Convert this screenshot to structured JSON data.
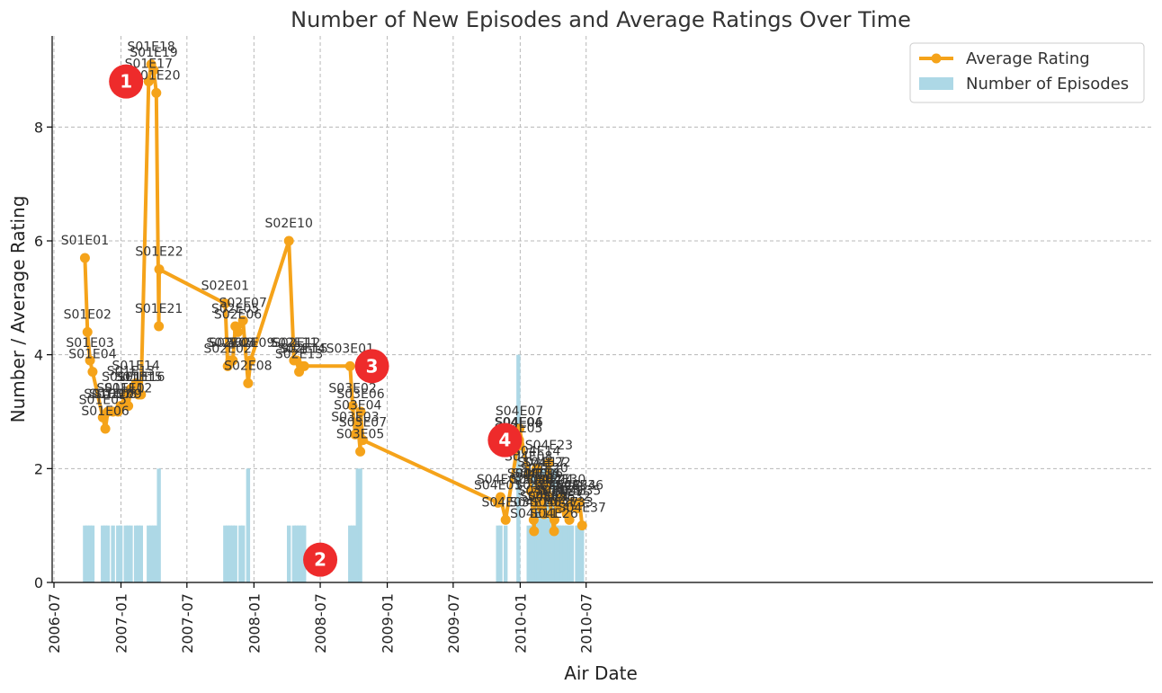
{
  "chart_data": {
    "type": "line",
    "title": "Number of New Episodes and Average Ratings Over Time",
    "xlabel": "Air Date",
    "ylabel": "Number / Average Rating",
    "x_ticks": [
      "2006-07",
      "2007-01",
      "2007-07",
      "2008-01",
      "2008-07",
      "2009-01",
      "2009-07",
      "2010-01",
      "2010-07"
    ],
    "y_ticks": [
      "0",
      "2",
      "4",
      "6",
      "8"
    ],
    "ylim": [
      0,
      9.6
    ],
    "grid": true,
    "legend_position": "top-right",
    "colors": {
      "rating": "#f5a31a",
      "episodes": "#add8e6",
      "marker": "#ee2b2b"
    },
    "series": [
      {
        "name": "Average Rating",
        "type": "line",
        "points": [
          {
            "label": "S01E01",
            "date": "2006-09-24",
            "y": 5.7
          },
          {
            "label": "S01E02",
            "date": "2006-10-01",
            "y": 4.4
          },
          {
            "label": "S01E03",
            "date": "2006-10-08",
            "y": 3.9
          },
          {
            "label": "S01E04",
            "date": "2006-10-15",
            "y": 3.7
          },
          {
            "label": "S01E05",
            "date": "2006-11-12",
            "y": 2.9
          },
          {
            "label": "S01E06",
            "date": "2006-11-19",
            "y": 2.7
          },
          {
            "label": "S01E07",
            "date": "2006-11-26",
            "y": 3.0
          },
          {
            "label": "S01E08",
            "date": "2006-12-10",
            "y": 3.0
          },
          {
            "label": "S01E09",
            "date": "2006-12-24",
            "y": 3.0
          },
          {
            "label": "S01E10",
            "date": "2006-12-31",
            "y": 3.1
          },
          {
            "label": "S01E11",
            "date": "2007-01-14",
            "y": 3.3
          },
          {
            "label": "S01E12",
            "date": "2007-01-21",
            "y": 3.1
          },
          {
            "label": "S01E13",
            "date": "2007-01-28",
            "y": 3.4
          },
          {
            "label": "S01E14",
            "date": "2007-02-11",
            "y": 3.5
          },
          {
            "label": "S01E15",
            "date": "2007-02-18",
            "y": 3.3
          },
          {
            "label": "S01E16",
            "date": "2007-02-25",
            "y": 3.3
          },
          {
            "label": "S01E17",
            "date": "2007-03-18",
            "y": 8.8
          },
          {
            "label": "S01E18",
            "date": "2007-03-25",
            "y": 9.1
          },
          {
            "label": "S01E19",
            "date": "2007-04-01",
            "y": 9.0
          },
          {
            "label": "S01E20",
            "date": "2007-04-08",
            "y": 8.6
          },
          {
            "label": "S01E21",
            "date": "2007-04-15",
            "y": 4.5
          },
          {
            "label": "S01E22",
            "date": "2007-04-16",
            "y": 5.5
          },
          {
            "label": "S02E01",
            "date": "2007-10-14",
            "y": 4.9
          },
          {
            "label": "S02E02",
            "date": "2007-10-21",
            "y": 3.8
          },
          {
            "label": "S02E03",
            "date": "2007-10-28",
            "y": 3.9
          },
          {
            "label": "S02E04",
            "date": "2007-11-04",
            "y": 3.9
          },
          {
            "label": "S02E05",
            "date": "2007-11-11",
            "y": 4.5
          },
          {
            "label": "S02E06",
            "date": "2007-11-18",
            "y": 4.4
          },
          {
            "label": "S02E07",
            "date": "2007-12-02",
            "y": 4.6
          },
          {
            "label": "S02E08",
            "date": "2007-12-16",
            "y": 3.5
          },
          {
            "label": "S02E09",
            "date": "2007-12-23",
            "y": 3.9
          },
          {
            "label": "S02E10",
            "date": "2008-04-06",
            "y": 6.0
          },
          {
            "label": "S02E11",
            "date": "2008-04-20",
            "y": 3.9
          },
          {
            "label": "S02E12",
            "date": "2008-04-27",
            "y": 3.9
          },
          {
            "label": "S02E13",
            "date": "2008-05-04",
            "y": 3.7
          },
          {
            "label": "S02E14",
            "date": "2008-05-11",
            "y": 3.8
          },
          {
            "label": "S02E15",
            "date": "2008-05-18",
            "y": 3.8
          },
          {
            "label": "S03E01",
            "date": "2008-09-21",
            "y": 3.8
          },
          {
            "label": "S03E02",
            "date": "2008-09-28",
            "y": 3.1
          },
          {
            "label": "S03E03",
            "date": "2008-10-05",
            "y": 2.6
          },
          {
            "label": "S03E04",
            "date": "2008-10-12",
            "y": 2.8
          },
          {
            "label": "S03E05",
            "date": "2008-10-19",
            "y": 2.3
          },
          {
            "label": "S03E06",
            "date": "2008-10-20",
            "y": 3.0
          },
          {
            "label": "S03E07",
            "date": "2008-10-26",
            "y": 2.5
          },
          {
            "label": "S04E01",
            "date": "2009-11-01",
            "y": 1.4
          },
          {
            "label": "S04E02",
            "date": "2009-11-08",
            "y": 1.5
          },
          {
            "label": "S04E03",
            "date": "2009-11-22",
            "y": 1.1
          },
          {
            "label": "S04E04",
            "date": "2009-12-27",
            "y": 2.5
          },
          {
            "label": "S04E05",
            "date": "2009-12-28",
            "y": 2.4
          },
          {
            "label": "S04E06",
            "date": "2009-12-29",
            "y": 2.5
          },
          {
            "label": "S04E07",
            "date": "2009-12-30",
            "y": 2.7
          },
          {
            "label": "S04E08",
            "date": "2010-01-24",
            "y": 1.9
          },
          {
            "label": "S04E09",
            "date": "2010-01-31",
            "y": 1.6
          },
          {
            "label": "S04E10",
            "date": "2010-02-07",
            "y": 1.1
          },
          {
            "label": "S04E11",
            "date": "2010-02-08",
            "y": 0.9
          },
          {
            "label": "S04E12",
            "date": "2010-02-09",
            "y": 1.5
          },
          {
            "label": "S04E13",
            "date": "2010-02-14",
            "y": 1.6
          },
          {
            "label": "S04E14",
            "date": "2010-02-15",
            "y": 2.0
          },
          {
            "label": "S04E15",
            "date": "2010-02-21",
            "y": 1.4
          },
          {
            "label": "S04E16",
            "date": "2010-02-22",
            "y": 1.6
          },
          {
            "label": "S04E17",
            "date": "2010-02-28",
            "y": 1.8
          },
          {
            "label": "S04E18",
            "date": "2010-03-01",
            "y": 1.3
          },
          {
            "label": "S04E19",
            "date": "2010-03-07",
            "y": 1.2
          },
          {
            "label": "S04E20",
            "date": "2010-03-08",
            "y": 1.7
          },
          {
            "label": "S04E21",
            "date": "2010-03-14",
            "y": 1.5
          },
          {
            "label": "S04E22",
            "date": "2010-03-15",
            "y": 1.8
          },
          {
            "label": "S04E23",
            "date": "2010-03-21",
            "y": 2.1
          },
          {
            "label": "S04E24",
            "date": "2010-03-22",
            "y": 1.5
          },
          {
            "label": "S04E25",
            "date": "2010-03-28",
            "y": 1.2
          },
          {
            "label": "S04E26",
            "date": "2010-04-04",
            "y": 0.9
          },
          {
            "label": "S04E27",
            "date": "2010-04-05",
            "y": 1.1
          },
          {
            "label": "S04E28",
            "date": "2010-04-11",
            "y": 1.4
          },
          {
            "label": "S04E29",
            "date": "2010-04-18",
            "y": 1.3
          },
          {
            "label": "S04E30",
            "date": "2010-04-25",
            "y": 1.5
          },
          {
            "label": "S04E31",
            "date": "2010-05-02",
            "y": 1.3
          },
          {
            "label": "S04E32",
            "date": "2010-05-09",
            "y": 1.2
          },
          {
            "label": "S04E33",
            "date": "2010-05-16",
            "y": 1.1
          },
          {
            "label": "S04E34",
            "date": "2010-05-23",
            "y": 1.4
          },
          {
            "label": "S04E35",
            "date": "2010-06-06",
            "y": 1.3
          },
          {
            "label": "S04E36",
            "date": "2010-06-13",
            "y": 1.4
          },
          {
            "label": "S04E37",
            "date": "2010-06-20",
            "y": 1.0
          }
        ]
      },
      {
        "name": "Number of Episodes",
        "type": "bar",
        "points": [
          {
            "date": "2006-09-24",
            "y": 1
          },
          {
            "date": "2006-10-01",
            "y": 1
          },
          {
            "date": "2006-10-08",
            "y": 1
          },
          {
            "date": "2006-10-15",
            "y": 1
          },
          {
            "date": "2006-11-12",
            "y": 1
          },
          {
            "date": "2006-11-19",
            "y": 1
          },
          {
            "date": "2006-11-26",
            "y": 1
          },
          {
            "date": "2006-12-10",
            "y": 1
          },
          {
            "date": "2006-12-24",
            "y": 1
          },
          {
            "date": "2006-12-31",
            "y": 1
          },
          {
            "date": "2007-01-14",
            "y": 1
          },
          {
            "date": "2007-01-21",
            "y": 1
          },
          {
            "date": "2007-01-28",
            "y": 1
          },
          {
            "date": "2007-02-11",
            "y": 1
          },
          {
            "date": "2007-02-18",
            "y": 1
          },
          {
            "date": "2007-02-25",
            "y": 1
          },
          {
            "date": "2007-03-18",
            "y": 1
          },
          {
            "date": "2007-03-25",
            "y": 1
          },
          {
            "date": "2007-04-01",
            "y": 1
          },
          {
            "date": "2007-04-08",
            "y": 1
          },
          {
            "date": "2007-04-15",
            "y": 2
          },
          {
            "date": "2007-10-14",
            "y": 1
          },
          {
            "date": "2007-10-21",
            "y": 1
          },
          {
            "date": "2007-10-28",
            "y": 1
          },
          {
            "date": "2007-11-04",
            "y": 1
          },
          {
            "date": "2007-11-11",
            "y": 1
          },
          {
            "date": "2007-11-25",
            "y": 1
          },
          {
            "date": "2007-12-02",
            "y": 1
          },
          {
            "date": "2007-12-16",
            "y": 2
          },
          {
            "date": "2008-04-06",
            "y": 1
          },
          {
            "date": "2008-04-20",
            "y": 1
          },
          {
            "date": "2008-04-27",
            "y": 1
          },
          {
            "date": "2008-05-04",
            "y": 1
          },
          {
            "date": "2008-05-11",
            "y": 1
          },
          {
            "date": "2008-05-18",
            "y": 1
          },
          {
            "date": "2008-09-21",
            "y": 1
          },
          {
            "date": "2008-09-28",
            "y": 1
          },
          {
            "date": "2008-10-05",
            "y": 1
          },
          {
            "date": "2008-10-12",
            "y": 2
          },
          {
            "date": "2008-10-19",
            "y": 2
          },
          {
            "date": "2009-11-01",
            "y": 1
          },
          {
            "date": "2009-11-08",
            "y": 1
          },
          {
            "date": "2009-11-22",
            "y": 1
          },
          {
            "date": "2009-12-27",
            "y": 4
          },
          {
            "date": "2010-01-24",
            "y": 1
          },
          {
            "date": "2010-01-31",
            "y": 1
          },
          {
            "date": "2010-02-07",
            "y": 2
          },
          {
            "date": "2010-02-14",
            "y": 2
          },
          {
            "date": "2010-02-21",
            "y": 2
          },
          {
            "date": "2010-02-28",
            "y": 2
          },
          {
            "date": "2010-03-07",
            "y": 2
          },
          {
            "date": "2010-03-14",
            "y": 2
          },
          {
            "date": "2010-03-21",
            "y": 2
          },
          {
            "date": "2010-03-28",
            "y": 1
          },
          {
            "date": "2010-04-04",
            "y": 2
          },
          {
            "date": "2010-04-11",
            "y": 1
          },
          {
            "date": "2010-04-18",
            "y": 1
          },
          {
            "date": "2010-04-25",
            "y": 1
          },
          {
            "date": "2010-05-02",
            "y": 1
          },
          {
            "date": "2010-05-09",
            "y": 1
          },
          {
            "date": "2010-05-16",
            "y": 1
          },
          {
            "date": "2010-05-23",
            "y": 1
          },
          {
            "date": "2010-06-06",
            "y": 1
          },
          {
            "date": "2010-06-13",
            "y": 1
          },
          {
            "date": "2010-06-20",
            "y": 1
          }
        ]
      }
    ],
    "annotations": [
      {
        "text": "1",
        "date": "2007-01-15",
        "y": 8.8
      },
      {
        "text": "2",
        "date": "2008-07-01",
        "y": 0.4
      },
      {
        "text": "3",
        "date": "2008-11-20",
        "y": 3.8
      },
      {
        "text": "4",
        "date": "2009-11-20",
        "y": 2.5
      }
    ]
  }
}
